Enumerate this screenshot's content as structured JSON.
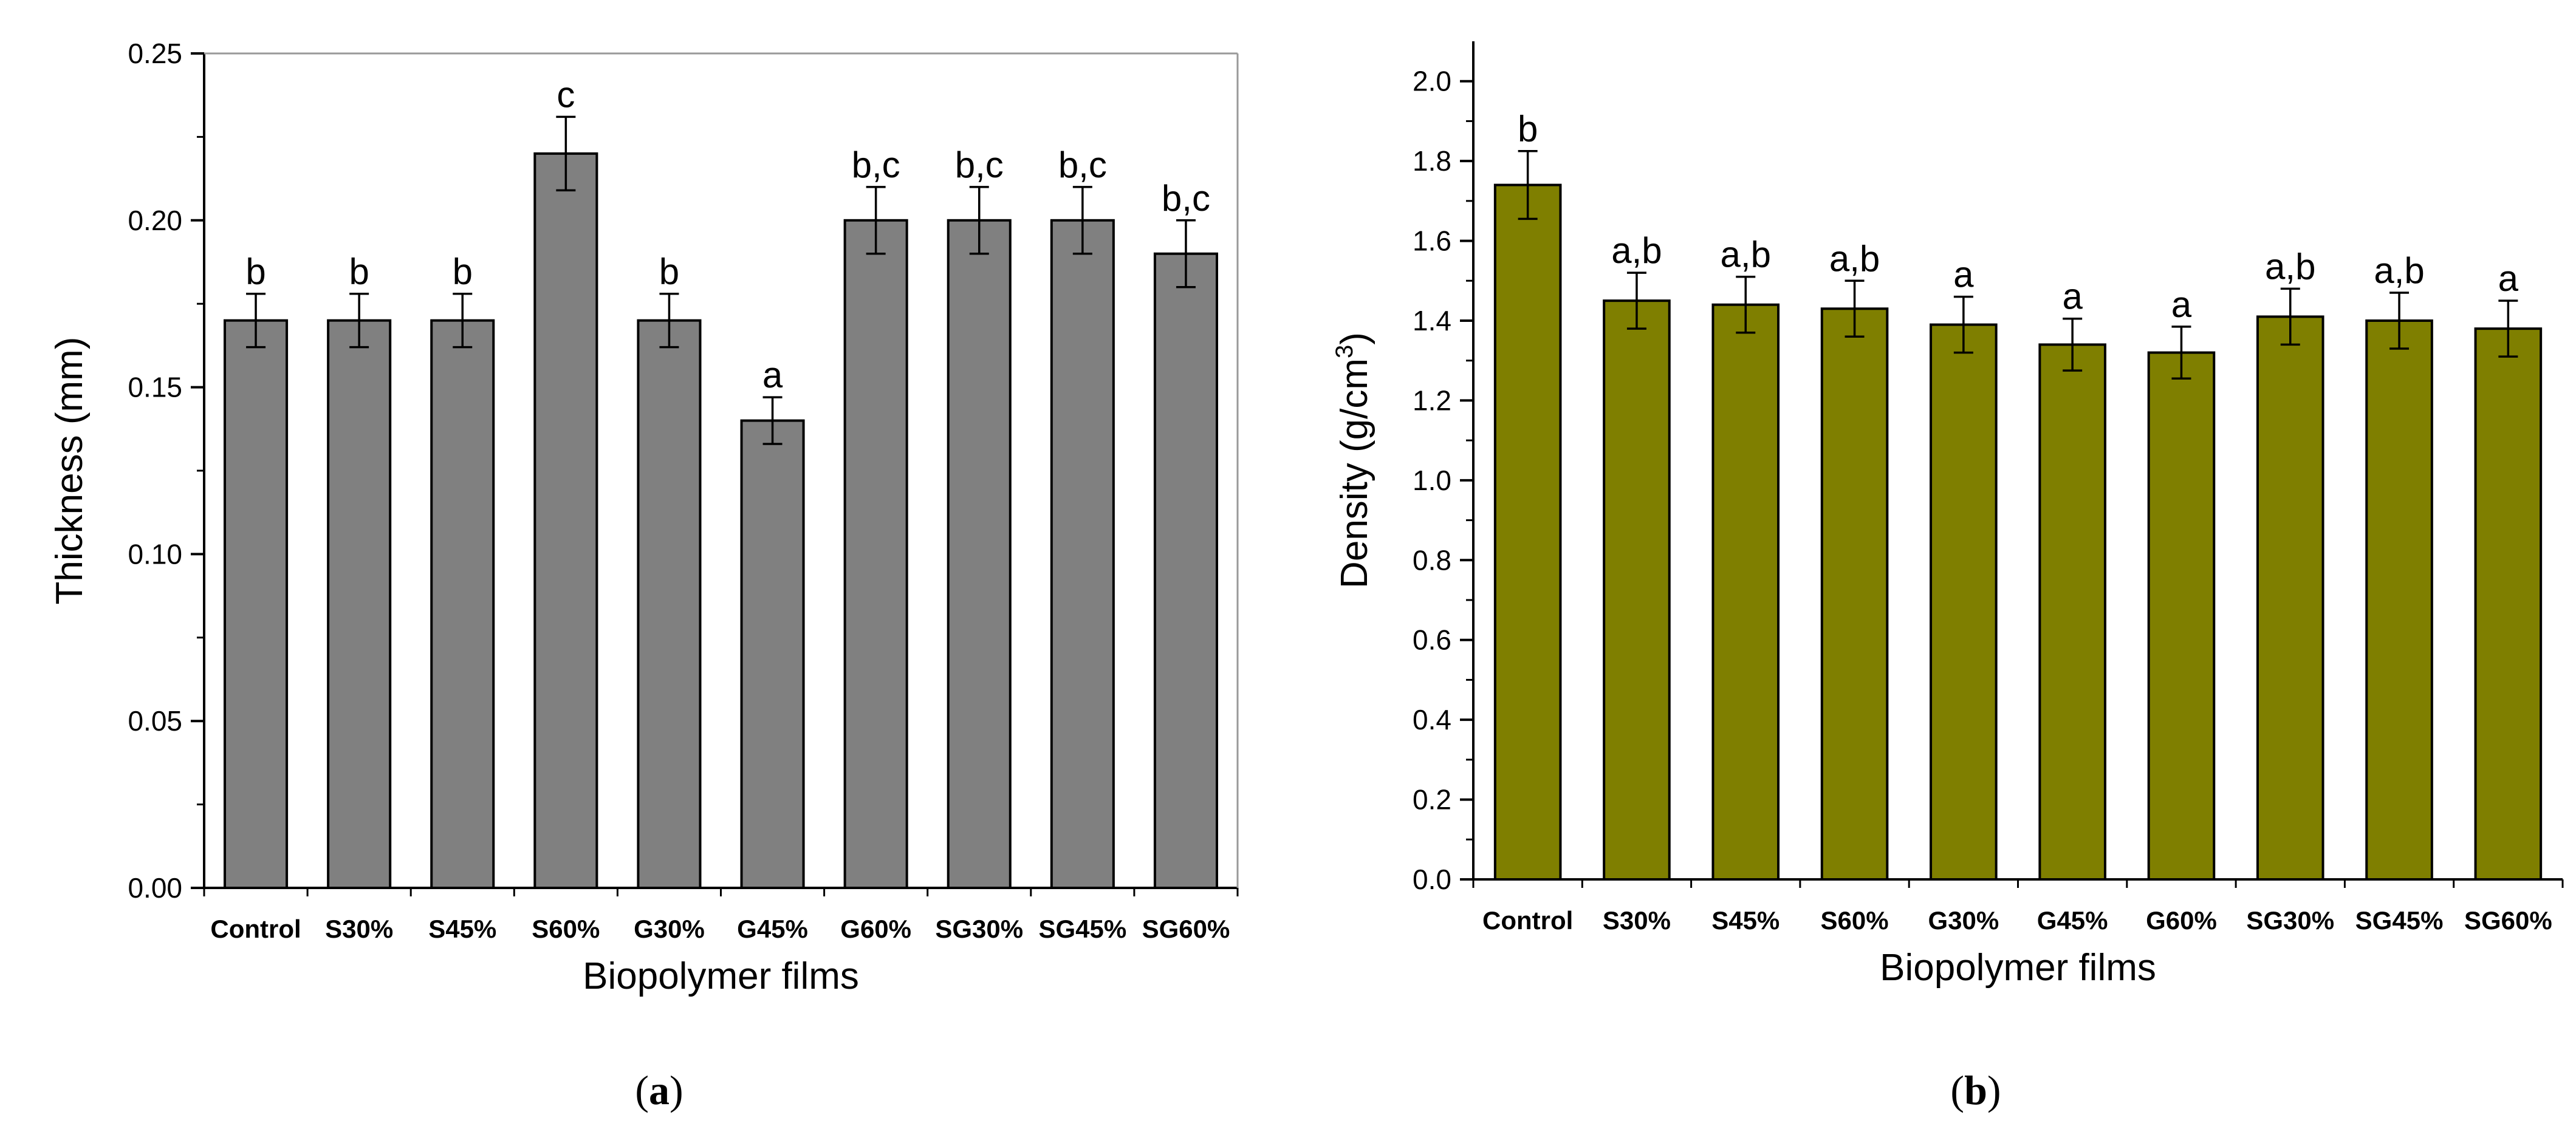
{
  "chart_data": [
    {
      "type": "bar",
      "panel": "a",
      "panel_label": "(a)",
      "xlabel": "Biopolymer films",
      "ylabel": "Thickness (mm)",
      "ylim": [
        0,
        0.25
      ],
      "yticks": [
        "0.00",
        "0.05",
        "0.10",
        "0.15",
        "0.20",
        "0.25"
      ],
      "categories": [
        "Control",
        "S30%",
        "S45%",
        "S60%",
        "G30%",
        "G45%",
        "G60%",
        "SG30%",
        "SG45%",
        "SG60%"
      ],
      "values": [
        0.17,
        0.17,
        0.17,
        0.22,
        0.17,
        0.14,
        0.2,
        0.2,
        0.2,
        0.19
      ],
      "errors": [
        0.008,
        0.008,
        0.008,
        0.011,
        0.008,
        0.007,
        0.01,
        0.01,
        0.01,
        0.01
      ],
      "annotations": [
        "b",
        "b",
        "b",
        "c",
        "b",
        "a",
        "b,c",
        "b,c",
        "b,c",
        "b,c"
      ],
      "bar_color": "#808080",
      "frame": "box"
    },
    {
      "type": "bar",
      "panel": "b",
      "panel_label": "(b)",
      "xlabel": "Biopolymer films",
      "ylabel": "Density (g/cm",
      "ylabel_sup": "3",
      "ylabel_end": ")",
      "ylim": [
        0,
        2.1
      ],
      "yticks": [
        "0.0",
        "0.2",
        "0.4",
        "0.6",
        "0.8",
        "1.0",
        "1.2",
        "1.4",
        "1.6",
        "1.8",
        "2.0"
      ],
      "categories": [
        "Control",
        "S30%",
        "S45%",
        "S60%",
        "G30%",
        "G45%",
        "G60%",
        "SG30%",
        "SG45%",
        "SG60%"
      ],
      "values": [
        1.74,
        1.45,
        1.44,
        1.43,
        1.39,
        1.34,
        1.32,
        1.41,
        1.4,
        1.38
      ],
      "errors": [
        0.085,
        0.07,
        0.07,
        0.07,
        0.07,
        0.065,
        0.065,
        0.07,
        0.07,
        0.07
      ],
      "annotations": [
        "b",
        "a,b",
        "a,b",
        "a,b",
        "a",
        "a",
        "a",
        "a,b",
        "a,b",
        "a"
      ],
      "bar_color": "#7F7F00",
      "frame": "open"
    }
  ]
}
